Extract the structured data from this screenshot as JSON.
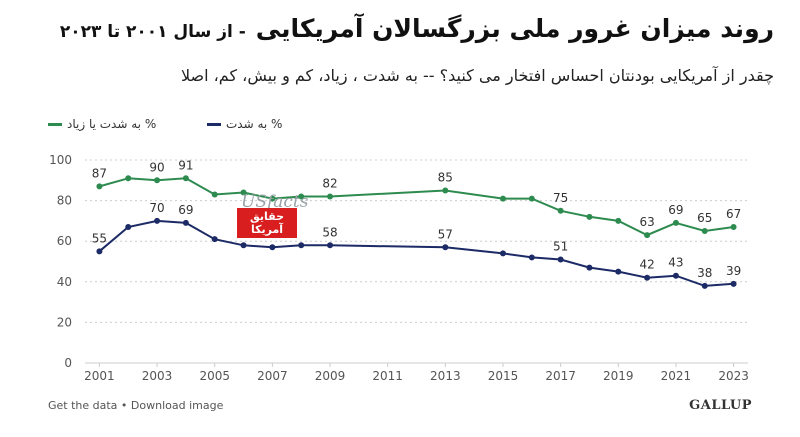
{
  "header": {
    "title": "روند میزان غرور ملی بزرگسالان آمریکایی",
    "subtitle": "- از سال ۲۰۰۱ تا ۲۰۲۳",
    "question": "چقدر از آمریکایی بودنتان احساس افتخار می کنید؟ -- به شدت ، زیاد، کم و بیش، کم، اصلا"
  },
  "legend": {
    "green_label": "% به شدت یا زیاد",
    "navy_label": "% به شدت"
  },
  "colors": {
    "green": "#2e8b4f",
    "navy": "#1c2a66",
    "grid": "#cccccc",
    "text": "#555555"
  },
  "watermark": {
    "line1": "USfacts",
    "line2": "حقایق",
    "line3": "آمریکا"
  },
  "footer": {
    "links": "Get the data • Download image",
    "brand": "GALLUP"
  },
  "chart_data": {
    "type": "line",
    "ylim": [
      0,
      100
    ],
    "yticks": [
      0,
      20,
      40,
      60,
      80,
      100
    ],
    "xlim": [
      2000.5,
      2023.5
    ],
    "xticks": [
      2001,
      2003,
      2005,
      2007,
      2009,
      2011,
      2013,
      2015,
      2017,
      2019,
      2021,
      2023
    ],
    "grid": true,
    "series": [
      {
        "name": "% به شدت یا زیاد",
        "color": "#2e8b4f",
        "points": [
          {
            "x": 2001,
            "y": 87,
            "label": "87"
          },
          {
            "x": 2002,
            "y": 91
          },
          {
            "x": 2003,
            "y": 90,
            "label": "90"
          },
          {
            "x": 2004,
            "y": 91,
            "label": "91"
          },
          {
            "x": 2005,
            "y": 83
          },
          {
            "x": 2006,
            "y": 84
          },
          {
            "x": 2007,
            "y": 81
          },
          {
            "x": 2008,
            "y": 82
          },
          {
            "x": 2009,
            "y": 82,
            "label": "82"
          },
          {
            "x": 2013,
            "y": 85,
            "label": "85"
          },
          {
            "x": 2015,
            "y": 81
          },
          {
            "x": 2016,
            "y": 81
          },
          {
            "x": 2017,
            "y": 75,
            "label": "75"
          },
          {
            "x": 2018,
            "y": 72
          },
          {
            "x": 2019,
            "y": 70
          },
          {
            "x": 2020,
            "y": 63,
            "label": "63"
          },
          {
            "x": 2021,
            "y": 69,
            "label": "69"
          },
          {
            "x": 2022,
            "y": 65,
            "label": "65"
          },
          {
            "x": 2023,
            "y": 67,
            "label": "67"
          }
        ]
      },
      {
        "name": "% به شدت",
        "color": "#1c2a66",
        "points": [
          {
            "x": 2001,
            "y": 55,
            "label": "55"
          },
          {
            "x": 2002,
            "y": 67
          },
          {
            "x": 2003,
            "y": 70,
            "label": "70"
          },
          {
            "x": 2004,
            "y": 69,
            "label": "69"
          },
          {
            "x": 2005,
            "y": 61
          },
          {
            "x": 2006,
            "y": 58
          },
          {
            "x": 2007,
            "y": 57
          },
          {
            "x": 2008,
            "y": 58
          },
          {
            "x": 2009,
            "y": 58,
            "label": "58"
          },
          {
            "x": 2013,
            "y": 57,
            "label": "57"
          },
          {
            "x": 2015,
            "y": 54
          },
          {
            "x": 2016,
            "y": 52
          },
          {
            "x": 2017,
            "y": 51,
            "label": "51"
          },
          {
            "x": 2018,
            "y": 47
          },
          {
            "x": 2019,
            "y": 45
          },
          {
            "x": 2020,
            "y": 42,
            "label": "42"
          },
          {
            "x": 2021,
            "y": 43,
            "label": "43"
          },
          {
            "x": 2022,
            "y": 38,
            "label": "38"
          },
          {
            "x": 2023,
            "y": 39,
            "label": "39"
          }
        ]
      }
    ]
  }
}
